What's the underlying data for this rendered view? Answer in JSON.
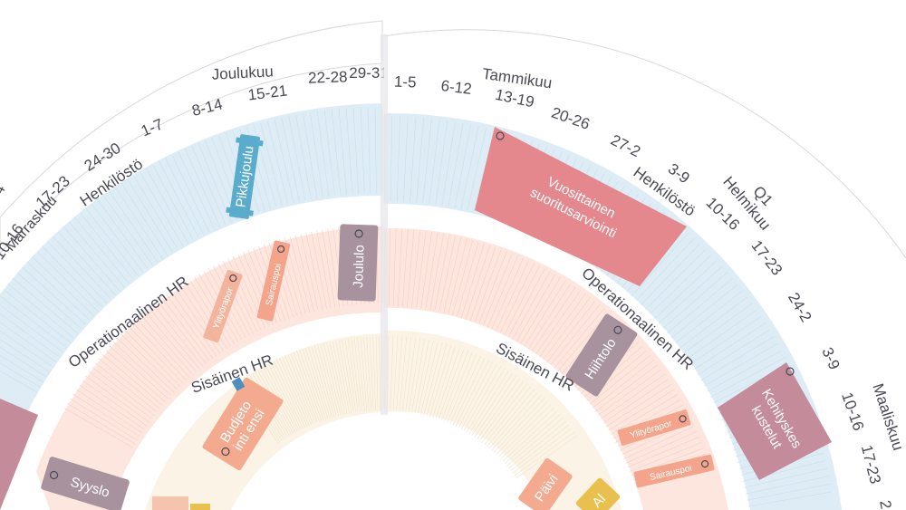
{
  "calendar": {
    "left_half": {
      "month_label": "Joulukuu",
      "prev_month_label": "Marraskuu",
      "week_labels": [
        "1-7",
        "8-14",
        "15-21",
        "22-28",
        "29-31"
      ],
      "prev_week_labels": [
        "10-16",
        "17-23",
        "24-30"
      ],
      "prev_week_partial": "4",
      "ring_labels": {
        "henkilosto": "Henkilöstö",
        "operational": "Operationaalinen HR",
        "internal": "Sisäinen HR"
      },
      "events": {
        "pikkujoulu": "Pikkujoulu",
        "joululo": "Joululo",
        "ylityoraportti": "Ylityörapor",
        "sairauspoissa": "Sairauspoi",
        "budjetointi_line1": "Budjeto",
        "budjetointi_line2": "inti ensi",
        "syysloma": "Syyslo"
      }
    },
    "right_half": {
      "month_label": "Tammikuu",
      "month2_label": "Helmikuu",
      "month3_label": "Maaliskuu",
      "quarter_label": "Q1",
      "week_labels": [
        "1-5",
        "6-12",
        "13-19",
        "20-26",
        "27-2"
      ],
      "week_labels_feb": [
        "3-9",
        "10-16",
        "17-23",
        "24-2"
      ],
      "week_labels_mar": [
        "3-9",
        "10-16",
        "17-23",
        "2"
      ],
      "ring_labels": {
        "henkilosto": "Henkilöstö",
        "operational": "Operationaalinen HR",
        "internal": "Sisäinen HR"
      },
      "events": {
        "suoritusarviointi_line1": "Vuosittainen",
        "suoritusarviointi_line2": "suoritusarviointi",
        "hiihtoloma": "Hiihtolo",
        "kehityskeskustelut_line1": "Kehityskes",
        "kehityskeskustelut_line2": "kustelut",
        "ylityoraportti": "Ylityörapor",
        "sairauspoissa": "Sairauspoi",
        "paiva": "Päivi",
        "al": "Al"
      }
    },
    "colors": {
      "henkilosto_band": "#deedf5",
      "operational_band": "#fde6de",
      "internal_band": "#fbf4e6",
      "pink_event": "#e4888e",
      "mauve_event": "#c48b9a",
      "purple_event": "#a7929e",
      "salmon_event": "#f3a48b",
      "blue_event": "#5aaccc",
      "yellow_event": "#e9c04e"
    }
  }
}
